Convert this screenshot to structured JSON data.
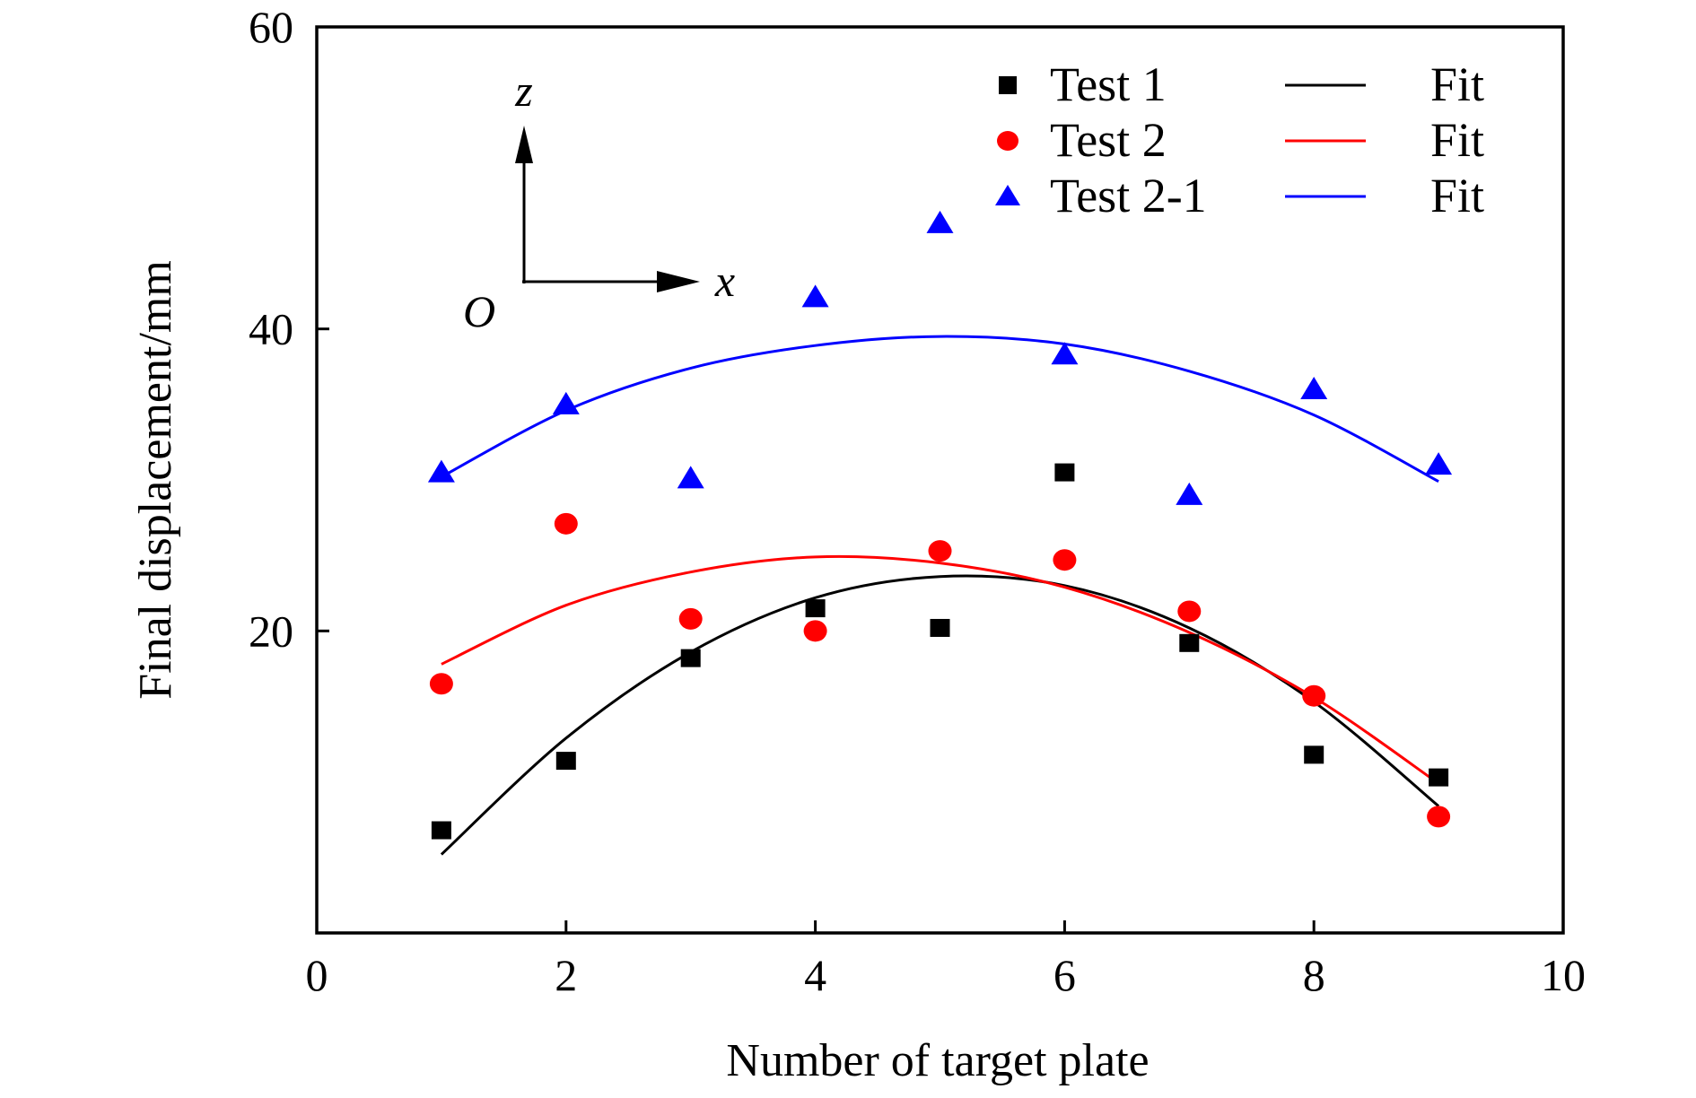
{
  "chart_data": {
    "type": "scatter",
    "xlabel": "Number of target plate",
    "ylabel": "Final displacement/mm",
    "xlim": [
      0,
      10
    ],
    "ylim": [
      0,
      60
    ],
    "xticks": [
      0,
      2,
      4,
      6,
      8,
      10
    ],
    "yticks": [
      20,
      40,
      60
    ],
    "xtick_labels": [
      "0",
      "2",
      "4",
      "6",
      "8",
      "10"
    ],
    "ytick_labels": [
      "20",
      "40",
      "60"
    ],
    "legend_position": "top-right",
    "grid": false,
    "series": [
      {
        "name": "Test 1",
        "marker": "square",
        "color": "#000000",
        "x": [
          1,
          2,
          3,
          4,
          5,
          6,
          7,
          8,
          9
        ],
        "y": [
          6.8,
          11.4,
          18.2,
          21.5,
          20.2,
          30.5,
          19.2,
          11.8,
          10.3
        ],
        "fit": {
          "label": "Fit",
          "color": "#000000",
          "x_range": [
            1,
            9
          ],
          "points": [
            [
              1,
              5.2
            ],
            [
              2,
              12.9
            ],
            [
              3,
              18.6
            ],
            [
              4,
              22.2
            ],
            [
              5,
              23.6
            ],
            [
              6,
              23.0
            ],
            [
              7,
              20.2
            ],
            [
              8,
              15.3
            ],
            [
              9,
              8.4
            ]
          ]
        }
      },
      {
        "name": "Test 2",
        "marker": "circle",
        "color": "#ff0000",
        "x": [
          1,
          2,
          3,
          4,
          5,
          6,
          7,
          8,
          9
        ],
        "y": [
          16.5,
          27.1,
          20.8,
          20.0,
          25.3,
          24.7,
          21.3,
          15.7,
          7.7
        ],
        "fit": {
          "label": "Fit",
          "color": "#ff0000",
          "x_range": [
            1,
            9
          ],
          "points": [
            [
              1,
              17.8
            ],
            [
              2,
              21.7
            ],
            [
              3,
              23.9
            ],
            [
              4,
              24.9
            ],
            [
              5,
              24.5
            ],
            [
              6,
              22.9
            ],
            [
              7,
              19.9
            ],
            [
              8,
              15.6
            ],
            [
              9,
              9.9
            ]
          ]
        }
      },
      {
        "name": "Test 2-1",
        "marker": "triangle",
        "color": "#0000ff",
        "x": [
          1,
          2,
          3,
          4,
          5,
          6,
          7,
          8,
          9
        ],
        "y": [
          30.5,
          35.0,
          30.1,
          42.1,
          47.0,
          38.3,
          29.0,
          36.0,
          31.0
        ],
        "fit": {
          "label": "Fit",
          "color": "#0000ff",
          "x_range": [
            1,
            9
          ],
          "points": [
            [
              1,
              30.2
            ],
            [
              2,
              34.6
            ],
            [
              3,
              37.4
            ],
            [
              4,
              38.9
            ],
            [
              5,
              39.5
            ],
            [
              6,
              39.0
            ],
            [
              7,
              37.2
            ],
            [
              8,
              34.3
            ],
            [
              9,
              29.9
            ]
          ]
        }
      }
    ],
    "inset": {
      "z_label": "z",
      "x_label": "x",
      "origin_label": "O"
    }
  }
}
